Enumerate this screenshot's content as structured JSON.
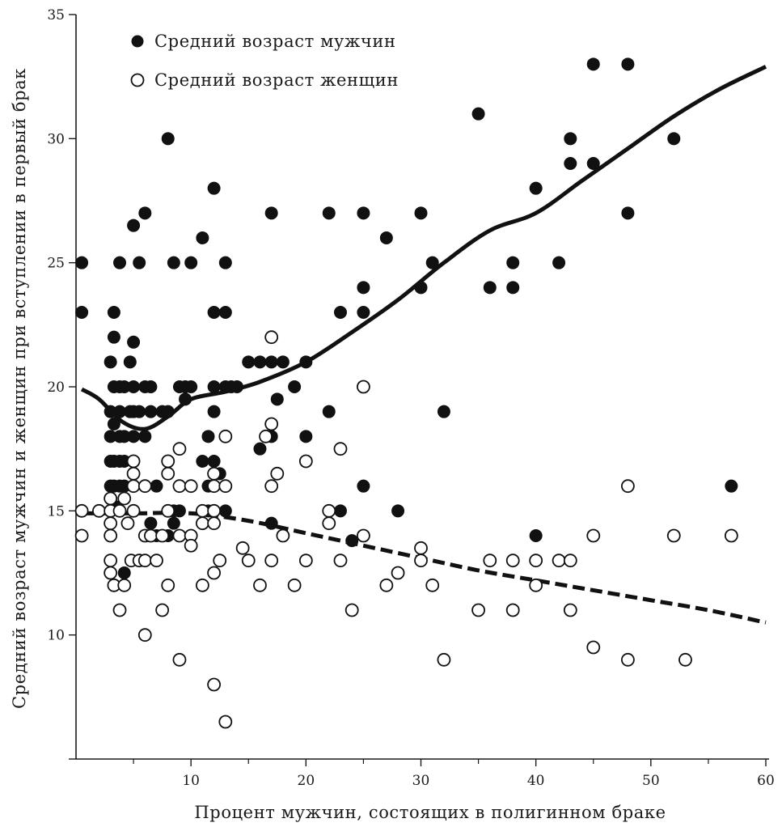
{
  "chart_data": {
    "type": "scatter",
    "title": "",
    "xlabel": "Процент мужчин, состоящих в полигинном браке",
    "ylabel": "Средний возраст мужчин и женщин при вступлении в первый брак",
    "xlim": [
      0,
      60
    ],
    "ylim": [
      5,
      35
    ],
    "x_ticks": [
      {
        "value": 10,
        "label": "10"
      },
      {
        "value": 20,
        "label": "20"
      },
      {
        "value": 30,
        "label": "30"
      },
      {
        "value": 40,
        "label": "40"
      },
      {
        "value": 50,
        "label": "50"
      },
      {
        "value": 60,
        "label": "60"
      }
    ],
    "x_minor_ticks": [
      5,
      15,
      25,
      35,
      45,
      55
    ],
    "y_ticks": [
      {
        "value": 10,
        "label": "10"
      },
      {
        "value": 15,
        "label": "15"
      },
      {
        "value": 20,
        "label": "20"
      },
      {
        "value": 25,
        "label": "25"
      },
      {
        "value": 30,
        "label": "30"
      },
      {
        "value": 35,
        "label": "35"
      }
    ],
    "grid": false,
    "legend_position": "top-left",
    "series": [
      {
        "name": "Средний возраст мужчин",
        "marker": "filled-circle",
        "points": [
          [
            0.5,
            25
          ],
          [
            0.5,
            23
          ],
          [
            3,
            21
          ],
          [
            3,
            19
          ],
          [
            3,
            18
          ],
          [
            3,
            17
          ],
          [
            3,
            16
          ],
          [
            3,
            15
          ],
          [
            3.3,
            23
          ],
          [
            3.3,
            22
          ],
          [
            3.3,
            20
          ],
          [
            3.3,
            18.5
          ],
          [
            3.3,
            17
          ],
          [
            3.3,
            16
          ],
          [
            3.3,
            15.2
          ],
          [
            3.8,
            25
          ],
          [
            3.8,
            20
          ],
          [
            3.8,
            19
          ],
          [
            3.8,
            18
          ],
          [
            3.8,
            17
          ],
          [
            3.8,
            16
          ],
          [
            3.8,
            15
          ],
          [
            4.2,
            20
          ],
          [
            4.2,
            18
          ],
          [
            4.2,
            17
          ],
          [
            4.2,
            16
          ],
          [
            4.2,
            12.5
          ],
          [
            4.7,
            21
          ],
          [
            4.7,
            19
          ],
          [
            5,
            26.5
          ],
          [
            5,
            21.8
          ],
          [
            5,
            20
          ],
          [
            5,
            19
          ],
          [
            5,
            18
          ],
          [
            5,
            16
          ],
          [
            5.5,
            25
          ],
          [
            5.5,
            19
          ],
          [
            6,
            27
          ],
          [
            6,
            20
          ],
          [
            6,
            18
          ],
          [
            6,
            16
          ],
          [
            6.5,
            20
          ],
          [
            6.5,
            19
          ],
          [
            6.5,
            14.5
          ],
          [
            7,
            16
          ],
          [
            7,
            14
          ],
          [
            7.5,
            19
          ],
          [
            8,
            30
          ],
          [
            8,
            19
          ],
          [
            8,
            14
          ],
          [
            8.5,
            25
          ],
          [
            8.5,
            15
          ],
          [
            8.5,
            14.5
          ],
          [
            9,
            20
          ],
          [
            9,
            15
          ],
          [
            9.5,
            20
          ],
          [
            9.5,
            19.5
          ],
          [
            10,
            25
          ],
          [
            10,
            20
          ],
          [
            11,
            26
          ],
          [
            11,
            17
          ],
          [
            11.5,
            18
          ],
          [
            11.5,
            16
          ],
          [
            11.5,
            15
          ],
          [
            12,
            28
          ],
          [
            12,
            23
          ],
          [
            12,
            20
          ],
          [
            12,
            19
          ],
          [
            12,
            17
          ],
          [
            12,
            15
          ],
          [
            12.5,
            16.5
          ],
          [
            13,
            25
          ],
          [
            13,
            23
          ],
          [
            13,
            20
          ],
          [
            13,
            15
          ],
          [
            13.5,
            20
          ],
          [
            14,
            20
          ],
          [
            15,
            21
          ],
          [
            16,
            21
          ],
          [
            16,
            17.5
          ],
          [
            17,
            27
          ],
          [
            17,
            21
          ],
          [
            17,
            18
          ],
          [
            17,
            14.5
          ],
          [
            17.5,
            19.5
          ],
          [
            18,
            21
          ],
          [
            19,
            20
          ],
          [
            20,
            21
          ],
          [
            20,
            18
          ],
          [
            22,
            27
          ],
          [
            22,
            19
          ],
          [
            23,
            23
          ],
          [
            23,
            15
          ],
          [
            24,
            13.8
          ],
          [
            25,
            27
          ],
          [
            25,
            24
          ],
          [
            25,
            23
          ],
          [
            25,
            16
          ],
          [
            27,
            26
          ],
          [
            28,
            15
          ],
          [
            30,
            27
          ],
          [
            30,
            24
          ],
          [
            31,
            25
          ],
          [
            32,
            19
          ],
          [
            35,
            31
          ],
          [
            36,
            24
          ],
          [
            38,
            25
          ],
          [
            38,
            24
          ],
          [
            40,
            28
          ],
          [
            40,
            14
          ],
          [
            42,
            25
          ],
          [
            43,
            30
          ],
          [
            43,
            29
          ],
          [
            45,
            33
          ],
          [
            45,
            29
          ],
          [
            48,
            33
          ],
          [
            48,
            27
          ],
          [
            52,
            30
          ],
          [
            57,
            16
          ]
        ]
      },
      {
        "name": "Средний возраст женщин",
        "marker": "open-circle",
        "points": [
          [
            0.5,
            15
          ],
          [
            0.5,
            14
          ],
          [
            2,
            15
          ],
          [
            3,
            15.5
          ],
          [
            3,
            15
          ],
          [
            3,
            14.5
          ],
          [
            3,
            14
          ],
          [
            3,
            13
          ],
          [
            3,
            12.5
          ],
          [
            3.3,
            12
          ],
          [
            3.8,
            15
          ],
          [
            3.8,
            11
          ],
          [
            4.2,
            15.5
          ],
          [
            4.2,
            12
          ],
          [
            4.5,
            14.5
          ],
          [
            4.8,
            13
          ],
          [
            5,
            17
          ],
          [
            5,
            16.5
          ],
          [
            5,
            16
          ],
          [
            5,
            15
          ],
          [
            5.5,
            13
          ],
          [
            6,
            16
          ],
          [
            6,
            14
          ],
          [
            6,
            13
          ],
          [
            6,
            10
          ],
          [
            6.5,
            14
          ],
          [
            7,
            13
          ],
          [
            7.5,
            14
          ],
          [
            7.5,
            11
          ],
          [
            8,
            17
          ],
          [
            8,
            16.5
          ],
          [
            8,
            15
          ],
          [
            8,
            12
          ],
          [
            9,
            17.5
          ],
          [
            9,
            16
          ],
          [
            9,
            14
          ],
          [
            9,
            9
          ],
          [
            10,
            16
          ],
          [
            10,
            14
          ],
          [
            10,
            13.6
          ],
          [
            11,
            15
          ],
          [
            11,
            14.5
          ],
          [
            11,
            12
          ],
          [
            12,
            16.5
          ],
          [
            12,
            16
          ],
          [
            12,
            15
          ],
          [
            12,
            14.5
          ],
          [
            12,
            12.5
          ],
          [
            12,
            8
          ],
          [
            12.5,
            13
          ],
          [
            13,
            18
          ],
          [
            13,
            16
          ],
          [
            13,
            6.5
          ],
          [
            14.5,
            13.5
          ],
          [
            15,
            13
          ],
          [
            16,
            12
          ],
          [
            16.5,
            18
          ],
          [
            17,
            22
          ],
          [
            17,
            18.5
          ],
          [
            17,
            16
          ],
          [
            17,
            13
          ],
          [
            17.5,
            16.5
          ],
          [
            18,
            14
          ],
          [
            19,
            12
          ],
          [
            20,
            17
          ],
          [
            20,
            13
          ],
          [
            22,
            15
          ],
          [
            22,
            14.5
          ],
          [
            23,
            17.5
          ],
          [
            23,
            13
          ],
          [
            24,
            11
          ],
          [
            25,
            20
          ],
          [
            25,
            14
          ],
          [
            27,
            12
          ],
          [
            28,
            12.5
          ],
          [
            30,
            13.5
          ],
          [
            30,
            13
          ],
          [
            31,
            12
          ],
          [
            32,
            9
          ],
          [
            35,
            11
          ],
          [
            36,
            13
          ],
          [
            38,
            13
          ],
          [
            38,
            11
          ],
          [
            40,
            13
          ],
          [
            40,
            12
          ],
          [
            42,
            13
          ],
          [
            43,
            13
          ],
          [
            43,
            11
          ],
          [
            45,
            14
          ],
          [
            45,
            9.5
          ],
          [
            48,
            16
          ],
          [
            48,
            9
          ],
          [
            52,
            14
          ],
          [
            53,
            9
          ],
          [
            57,
            14
          ]
        ]
      }
    ],
    "trend_lines": [
      {
        "series": "Средний возраст мужчин",
        "style": "solid",
        "points": [
          [
            0.5,
            19.9
          ],
          [
            2,
            19.5
          ],
          [
            4,
            18.6
          ],
          [
            6,
            18.3
          ],
          [
            8,
            18.8
          ],
          [
            10,
            19.5
          ],
          [
            13,
            19.8
          ],
          [
            16,
            20.2
          ],
          [
            20,
            21
          ],
          [
            24,
            22.2
          ],
          [
            28,
            23.5
          ],
          [
            32,
            25
          ],
          [
            36,
            26.3
          ],
          [
            40,
            27
          ],
          [
            44,
            28.3
          ],
          [
            48,
            29.6
          ],
          [
            52,
            30.9
          ],
          [
            56,
            32
          ],
          [
            60,
            32.9
          ]
        ]
      },
      {
        "series": "Средний возраст женщин",
        "style": "dashed",
        "points": [
          [
            0.5,
            14.9
          ],
          [
            5,
            14.9
          ],
          [
            10,
            14.9
          ],
          [
            15,
            14.6
          ],
          [
            20,
            14.1
          ],
          [
            25,
            13.6
          ],
          [
            30,
            13.1
          ],
          [
            35,
            12.6
          ],
          [
            40,
            12.2
          ],
          [
            45,
            11.8
          ],
          [
            50,
            11.4
          ],
          [
            55,
            11
          ],
          [
            60,
            10.5
          ]
        ]
      }
    ]
  }
}
